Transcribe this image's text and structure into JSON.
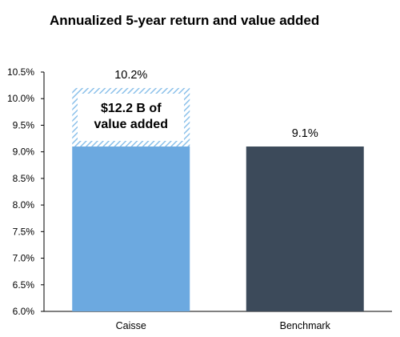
{
  "chart_data": {
    "type": "bar",
    "title": "Annualized 5-year return and value added",
    "categories": [
      "Caisse",
      "Benchmark"
    ],
    "values": [
      10.2,
      9.1
    ],
    "data_labels": [
      "10.2%",
      "9.1%"
    ],
    "ylim": [
      6.0,
      10.5
    ],
    "yticks": [
      "6.0%",
      "6.5%",
      "7.0%",
      "7.5%",
      "8.0%",
      "8.5%",
      "9.0%",
      "9.5%",
      "10.0%",
      "10.5%"
    ],
    "ytick_values": [
      6.0,
      6.5,
      7.0,
      7.5,
      8.0,
      8.5,
      9.0,
      9.5,
      10.0,
      10.5
    ],
    "grid": false,
    "value_added_segment": {
      "category": "Caisse",
      "from": 9.1,
      "to": 10.2,
      "pattern": "hatched"
    },
    "annotation": {
      "line1": "$12.2 B of",
      "line2": "value added"
    },
    "colors": {
      "caisse": "#6CA9E0",
      "benchmark": "#3C4A5A",
      "hatch": "#8CC1EA",
      "axis": "#000000"
    }
  }
}
